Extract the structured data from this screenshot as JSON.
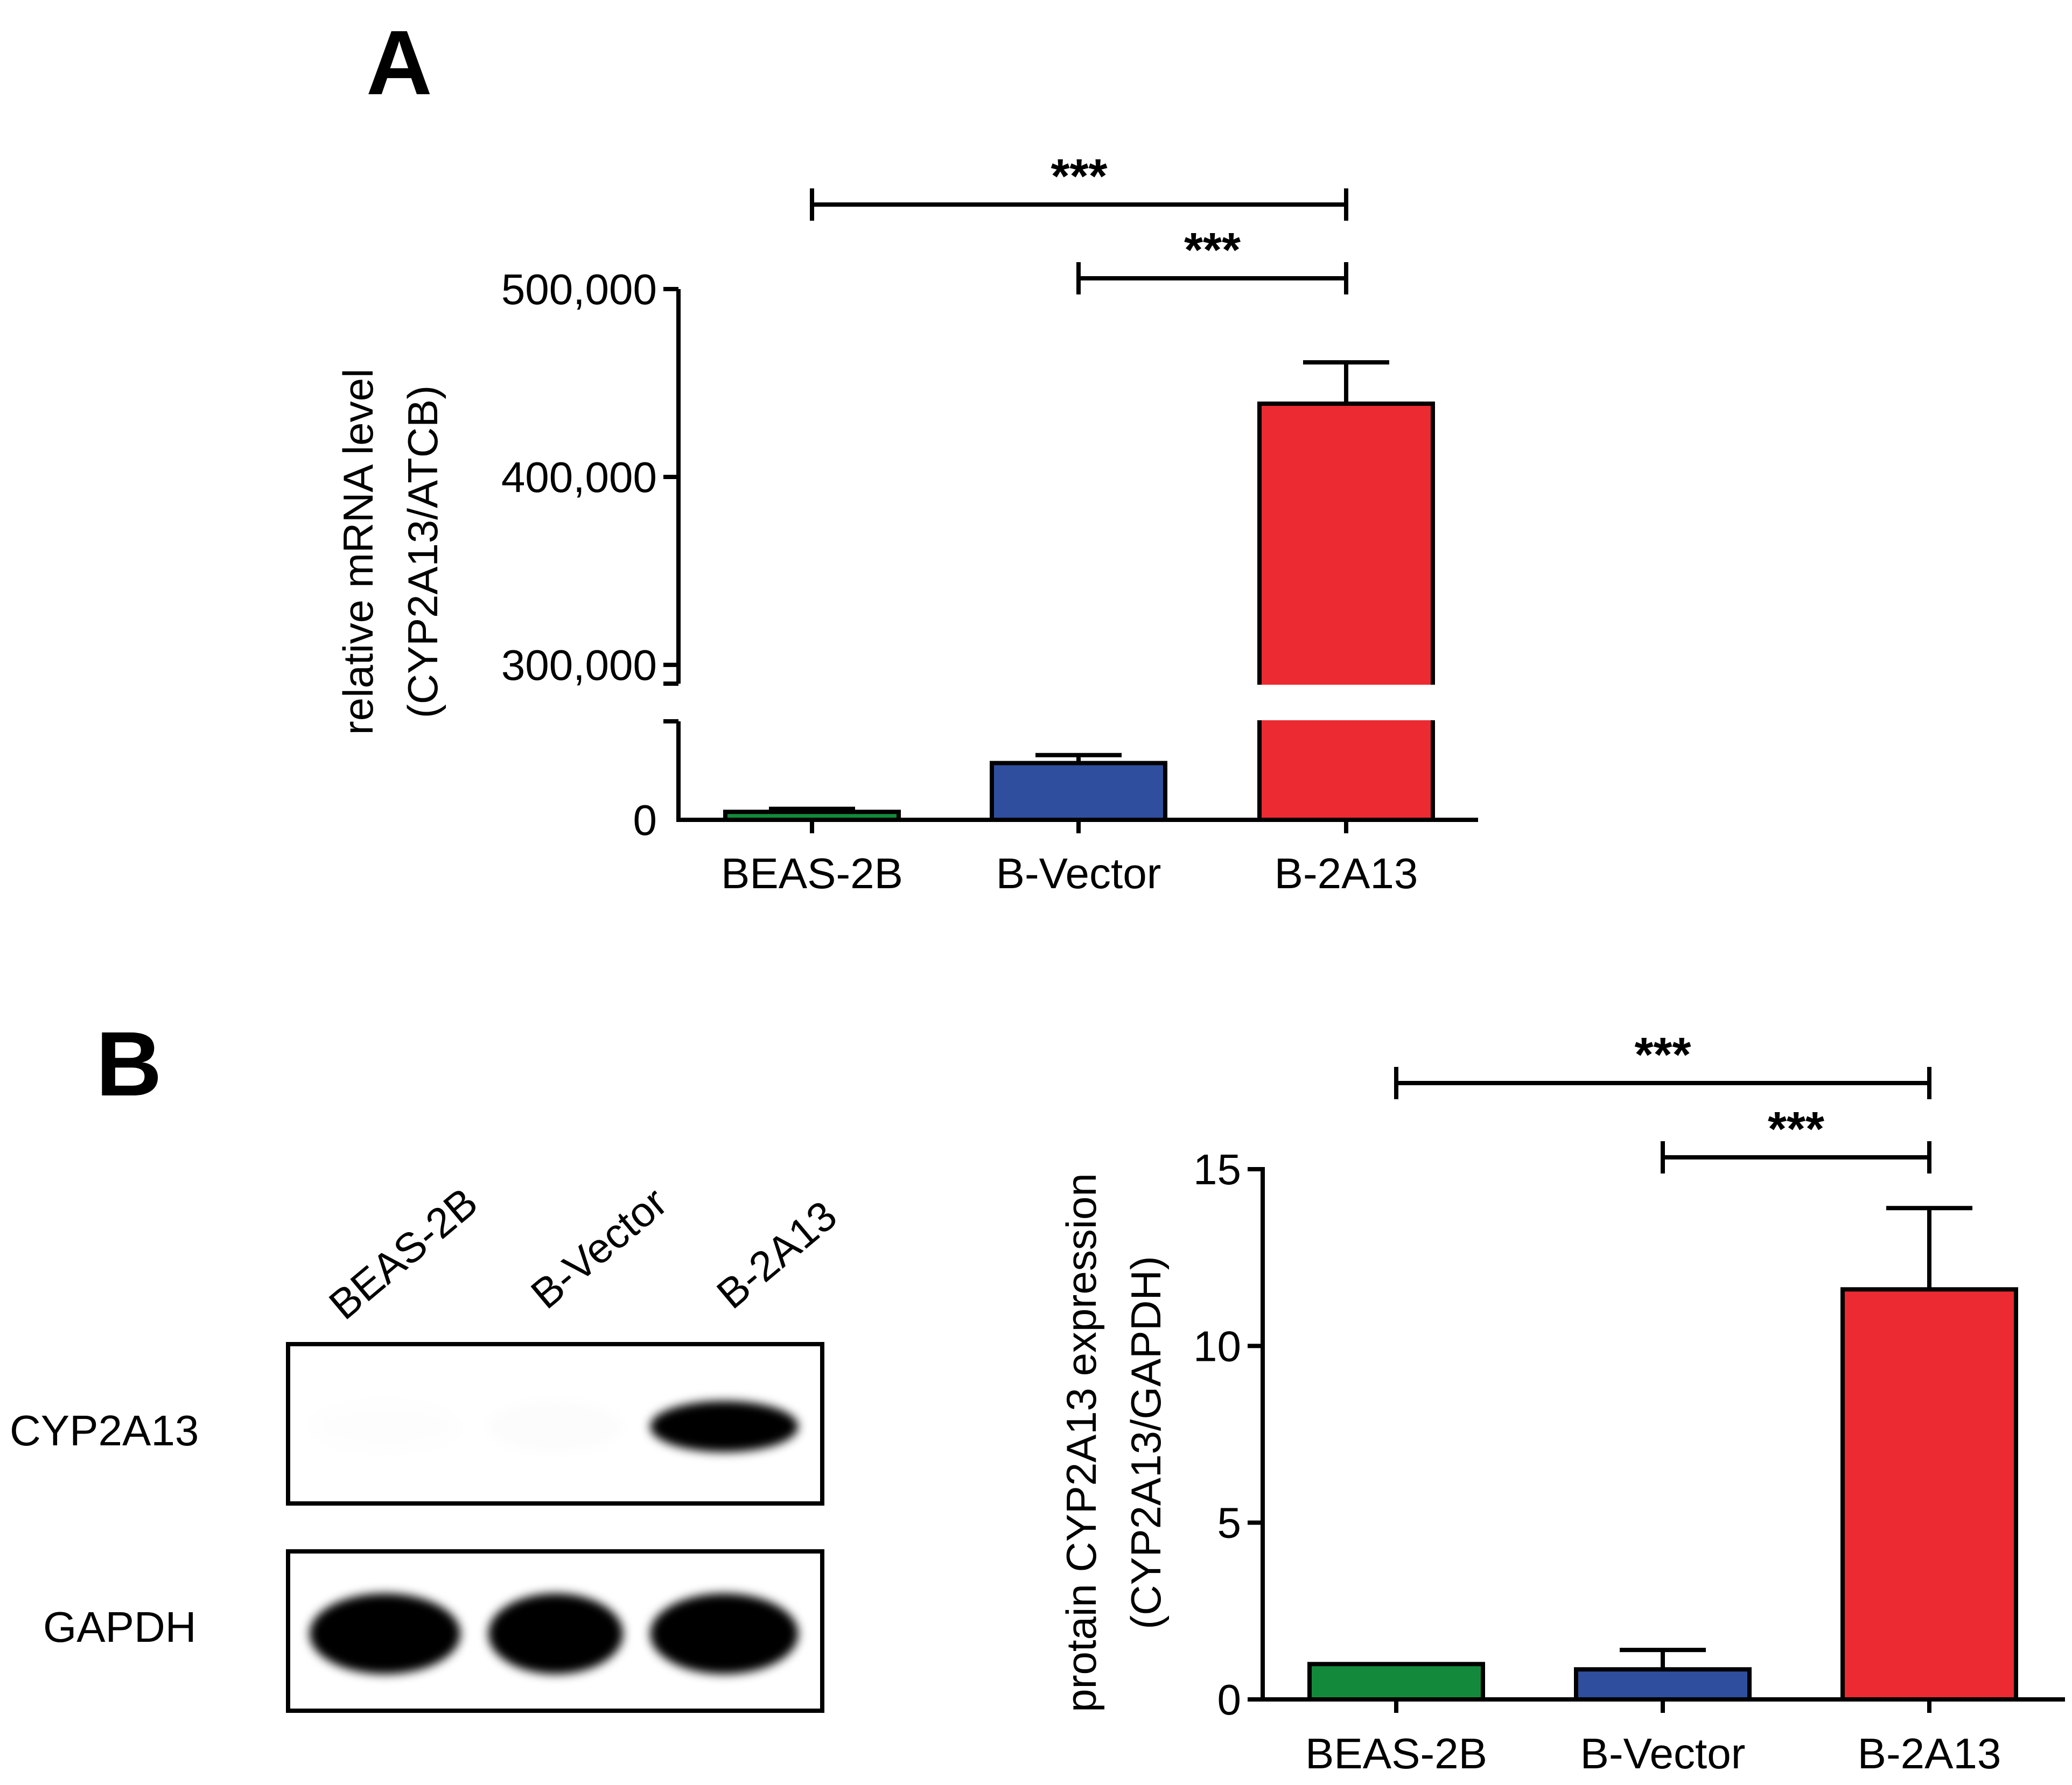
{
  "panels": {
    "a_label": "A",
    "b_label": "B"
  },
  "colors": {
    "green": "#138a3b",
    "blue": "#2f4f9e",
    "red": "#ec2a32",
    "black": "#000000"
  },
  "chart_data": [
    {
      "type": "bar",
      "panel": "A",
      "title": "",
      "xlabel": "",
      "ylabel_line1": "relative mRNA  level",
      "ylabel_line2": "(CYP2A13/ATCB)",
      "categories": [
        "BEAS-2B",
        "B-Vector",
        "B-2A13"
      ],
      "values": [
        4000,
        28500,
        439000
      ],
      "errors": [
        1500,
        4000,
        22000
      ],
      "colors": [
        "#138a3b",
        "#2f4f9e",
        "#ec2a32"
      ],
      "axis_break": {
        "lower": [
          0,
          50000
        ],
        "upper": [
          290000,
          500000
        ]
      },
      "yticks": [
        "0",
        "300,000",
        "400,000",
        "500,000"
      ],
      "significance": [
        {
          "from": "BEAS-2B",
          "to": "B-2A13",
          "label": "***"
        },
        {
          "from": "B-Vector",
          "to": "B-2A13",
          "label": "***"
        }
      ]
    },
    {
      "type": "bar",
      "panel": "B",
      "title": "",
      "xlabel": "",
      "ylabel_line1": "protain CYP2A13  expression",
      "ylabel_line2": "(CYP2A13/GAPDH)",
      "categories": [
        "BEAS-2B",
        "B-Vector",
        "B-2A13"
      ],
      "values": [
        1.0,
        0.85,
        11.6
      ],
      "errors": [
        0,
        0.55,
        2.3
      ],
      "colors": [
        "#138a3b",
        "#2f4f9e",
        "#ec2a32"
      ],
      "ylim": [
        0,
        15
      ],
      "yticks": [
        "0",
        "5",
        "10",
        "15"
      ],
      "significance": [
        {
          "from": "BEAS-2B",
          "to": "B-2A13",
          "label": "***"
        },
        {
          "from": "B-Vector",
          "to": "B-2A13",
          "label": "***"
        }
      ]
    }
  ],
  "blot": {
    "lanes": [
      "BEAS-2B",
      "B-Vector",
      "B-2A13"
    ],
    "rows": [
      {
        "label": "CYP2A13",
        "band_strength": [
          0.02,
          0.03,
          1.0
        ]
      },
      {
        "label": "GAPDH",
        "band_strength": [
          1.0,
          1.0,
          1.0
        ]
      }
    ]
  }
}
